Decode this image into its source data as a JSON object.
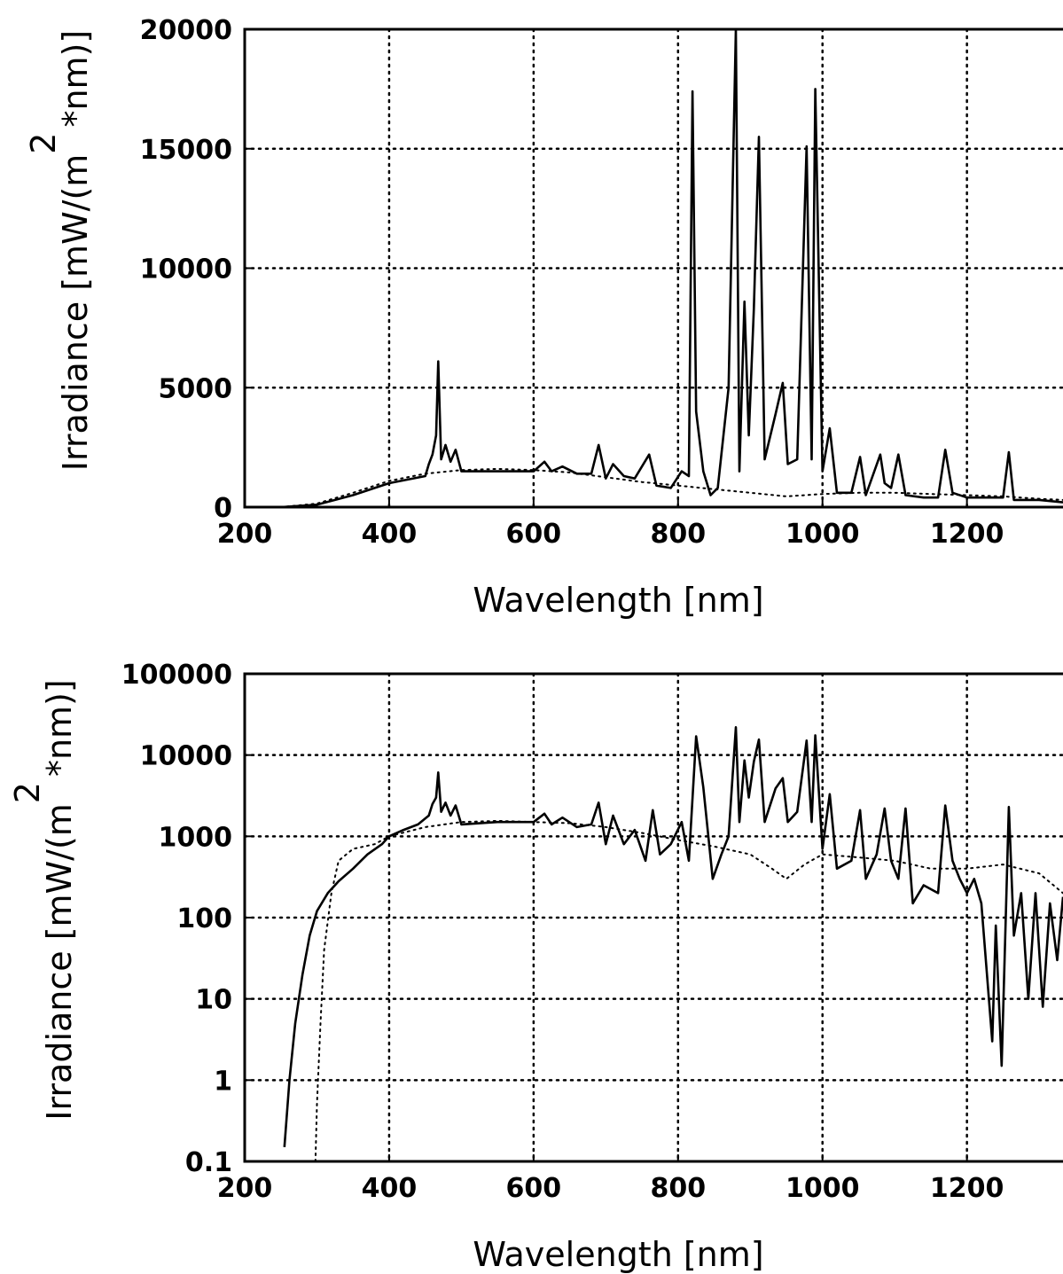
{
  "chart_data": [
    {
      "type": "line",
      "xlabel": "Wavelength [nm]",
      "ylabel": "Irradiance [mW/(m",
      "ylabel_exponent": "2",
      "ylabel_tail": "*nm)]",
      "xlim": [
        200,
        1333
      ],
      "ylim": [
        0,
        20000
      ],
      "yscale": "linear",
      "grid": true,
      "xticks": [
        200,
        400,
        600,
        800,
        1000,
        1200
      ],
      "xtick_labels": [
        "200",
        "400",
        "600",
        "800",
        "1000",
        "1200"
      ],
      "yticks": [
        0,
        5000,
        10000,
        15000,
        20000
      ],
      "ytick_labels": [
        "0",
        "5000",
        "10000",
        "15000",
        "20000"
      ],
      "series": [
        {
          "style": "solid",
          "x": [
            250,
            300,
            350,
            400,
            450,
            455,
            460,
            465,
            468,
            472,
            478,
            485,
            492,
            500,
            550,
            600,
            615,
            625,
            640,
            660,
            680,
            690,
            700,
            710,
            725,
            740,
            760,
            770,
            790,
            805,
            815,
            820,
            825,
            835,
            845,
            855,
            870,
            880,
            885,
            892,
            898,
            905,
            912,
            920,
            935,
            945,
            952,
            965,
            978,
            985,
            990,
            1000,
            1010,
            1020,
            1040,
            1052,
            1060,
            1080,
            1086,
            1095,
            1105,
            1115,
            1140,
            1160,
            1170,
            1180,
            1200,
            1250,
            1258,
            1265,
            1300,
            1333
          ],
          "y": [
            0,
            100,
            500,
            1000,
            1300,
            1800,
            2200,
            3000,
            6100,
            2000,
            2600,
            1900,
            2400,
            1500,
            1500,
            1500,
            1900,
            1500,
            1700,
            1400,
            1400,
            2600,
            1200,
            1800,
            1300,
            1200,
            2200,
            900,
            800,
            1500,
            1300,
            17400,
            4000,
            1500,
            500,
            800,
            5000,
            20000,
            1500,
            8600,
            3000,
            8300,
            15500,
            2000,
            3900,
            5200,
            1800,
            2000,
            15100,
            2000,
            17500,
            1500,
            3300,
            600,
            600,
            2100,
            500,
            2200,
            1000,
            800,
            2200,
            500,
            400,
            400,
            2400,
            600,
            400,
            400,
            2300,
            300,
            300,
            200
          ]
        },
        {
          "style": "dotted",
          "x": [
            250,
            300,
            350,
            400,
            450,
            500,
            550,
            600,
            650,
            700,
            750,
            800,
            850,
            900,
            950,
            1000,
            1050,
            1100,
            1150,
            1200,
            1250,
            1300,
            1333
          ],
          "y": [
            0,
            150,
            600,
            1100,
            1400,
            1550,
            1600,
            1550,
            1450,
            1250,
            1050,
            900,
            750,
            600,
            450,
            550,
            600,
            600,
            550,
            500,
            450,
            350,
            300
          ]
        }
      ]
    },
    {
      "type": "line",
      "xlabel": "Wavelength [nm]",
      "ylabel": "Irradiance [mW/(m",
      "ylabel_exponent": "2",
      "ylabel_tail": "*nm)]",
      "xlim": [
        200,
        1333
      ],
      "ylim": [
        0.1,
        100000
      ],
      "yscale": "log",
      "grid": true,
      "xticks": [
        200,
        400,
        600,
        800,
        1000,
        1200
      ],
      "xtick_labels": [
        "200",
        "400",
        "600",
        "800",
        "1000",
        "1200"
      ],
      "yticks": [
        0.1,
        1,
        10,
        100,
        1000,
        10000,
        100000
      ],
      "ytick_labels": [
        "0.1",
        "1",
        "10",
        "100",
        "1000",
        "10000",
        "100000"
      ],
      "series": [
        {
          "style": "solid",
          "x": [
            255,
            262,
            270,
            280,
            290,
            300,
            315,
            330,
            350,
            370,
            390,
            400,
            420,
            440,
            455,
            460,
            465,
            468,
            472,
            478,
            485,
            492,
            500,
            550,
            600,
            615,
            625,
            640,
            660,
            680,
            690,
            700,
            710,
            725,
            740,
            755,
            765,
            775,
            790,
            805,
            815,
            825,
            835,
            848,
            860,
            870,
            880,
            885,
            892,
            898,
            905,
            912,
            920,
            935,
            945,
            952,
            965,
            978,
            985,
            990,
            1000,
            1010,
            1020,
            1040,
            1052,
            1060,
            1075,
            1086,
            1095,
            1105,
            1115,
            1125,
            1140,
            1160,
            1170,
            1180,
            1190,
            1200,
            1210,
            1220,
            1235,
            1240,
            1248,
            1258,
            1265,
            1275,
            1285,
            1295,
            1305,
            1315,
            1325,
            1333
          ],
          "y": [
            0.15,
            1,
            5,
            20,
            60,
            120,
            200,
            280,
            400,
            600,
            800,
            1000,
            1200,
            1400,
            1800,
            2500,
            3000,
            6100,
            2000,
            2600,
            1800,
            2400,
            1400,
            1500,
            1500,
            1900,
            1400,
            1700,
            1300,
            1400,
            2600,
            800,
            1800,
            800,
            1200,
            500,
            2100,
            600,
            800,
            1500,
            500,
            17000,
            4000,
            300,
            600,
            1000,
            22000,
            1500,
            8600,
            3000,
            8300,
            15500,
            1500,
            3900,
            5200,
            1500,
            2000,
            15100,
            1500,
            17500,
            700,
            3300,
            400,
            500,
            2100,
            300,
            600,
            2200,
            500,
            300,
            2200,
            150,
            250,
            200,
            2400,
            500,
            300,
            200,
            300,
            150,
            3,
            80,
            1.5,
            2300,
            60,
            200,
            10,
            200,
            8,
            150,
            30,
            180
          ]
        },
        {
          "style": "dotted",
          "x": [
            298,
            300,
            305,
            310,
            320,
            330,
            350,
            380,
            400,
            450,
            500,
            550,
            600,
            650,
            700,
            750,
            800,
            850,
            900,
            930,
            950,
            975,
            1000,
            1050,
            1100,
            1150,
            1200,
            1250,
            1300,
            1333
          ],
          "y": [
            0.1,
            0.5,
            5,
            40,
            200,
            500,
            700,
            800,
            1000,
            1300,
            1500,
            1550,
            1500,
            1450,
            1300,
            1100,
            900,
            750,
            600,
            400,
            300,
            450,
            600,
            550,
            500,
            400,
            400,
            450,
            350,
            200
          ]
        }
      ]
    }
  ]
}
